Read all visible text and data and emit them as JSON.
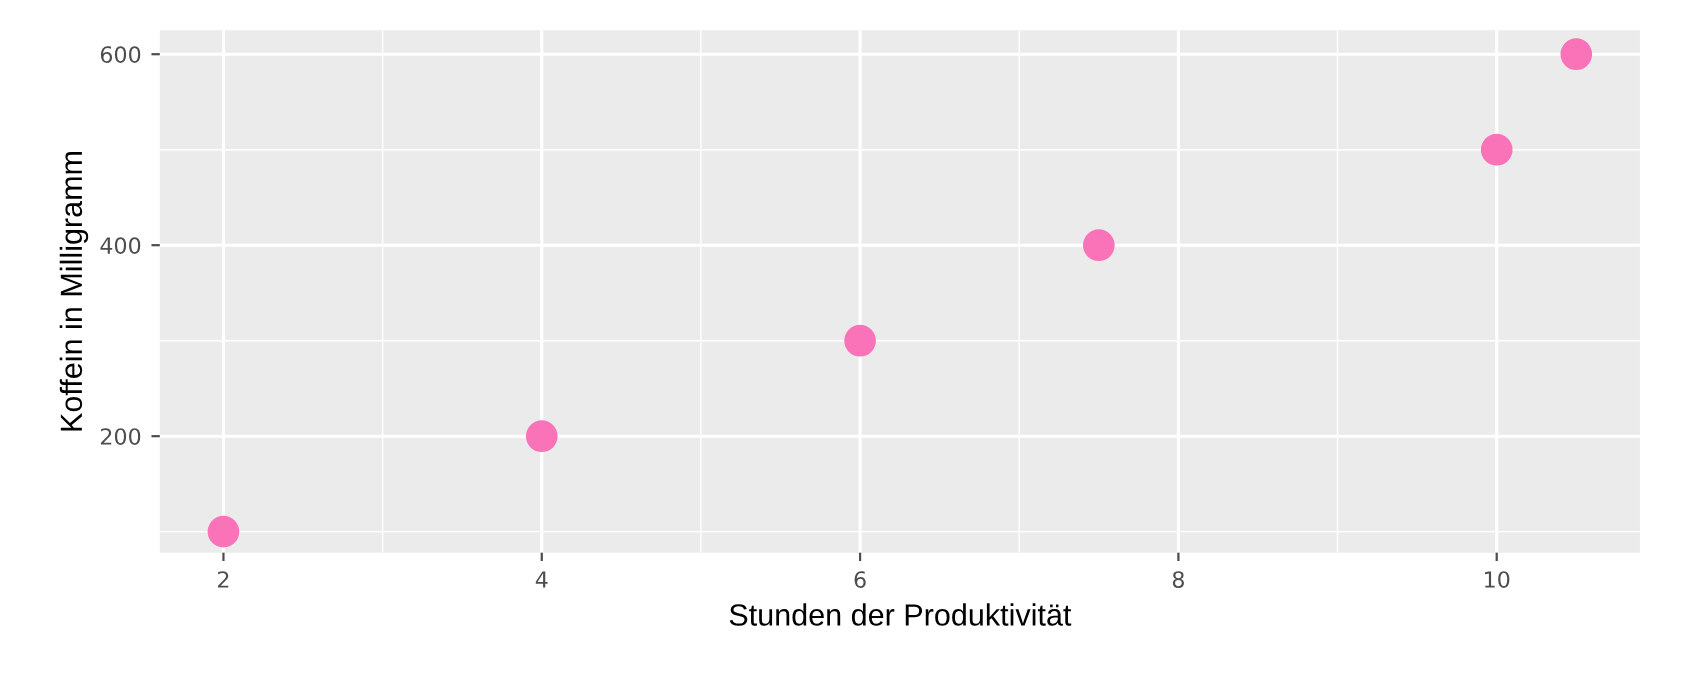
{
  "chart_data": {
    "type": "scatter",
    "xlabel": "Stunden der Produktivität",
    "ylabel": "Koffein in Milligramm",
    "x": [
      2,
      4,
      6,
      7.5,
      10,
      10.5
    ],
    "series": [
      {
        "color": "#fa73b8",
        "values": [
          100,
          200,
          300,
          400,
          500,
          600
        ]
      }
    ],
    "xlim": [
      1.6,
      10.9
    ],
    "ylim": [
      78,
      625
    ],
    "xticks": [
      2,
      {
        "value": 3,
        "label": null
      },
      4,
      {
        "value": 5,
        "label": null
      },
      6,
      {
        "value": 7,
        "label": null
      },
      8,
      {
        "value": 9,
        "label": null
      },
      10
    ],
    "yticks": [
      {
        "value": 100,
        "label": null
      },
      200,
      {
        "value": 300,
        "label": null
      },
      400,
      {
        "value": 500,
        "label": null
      },
      600
    ],
    "grid": true,
    "marker": "circle"
  }
}
